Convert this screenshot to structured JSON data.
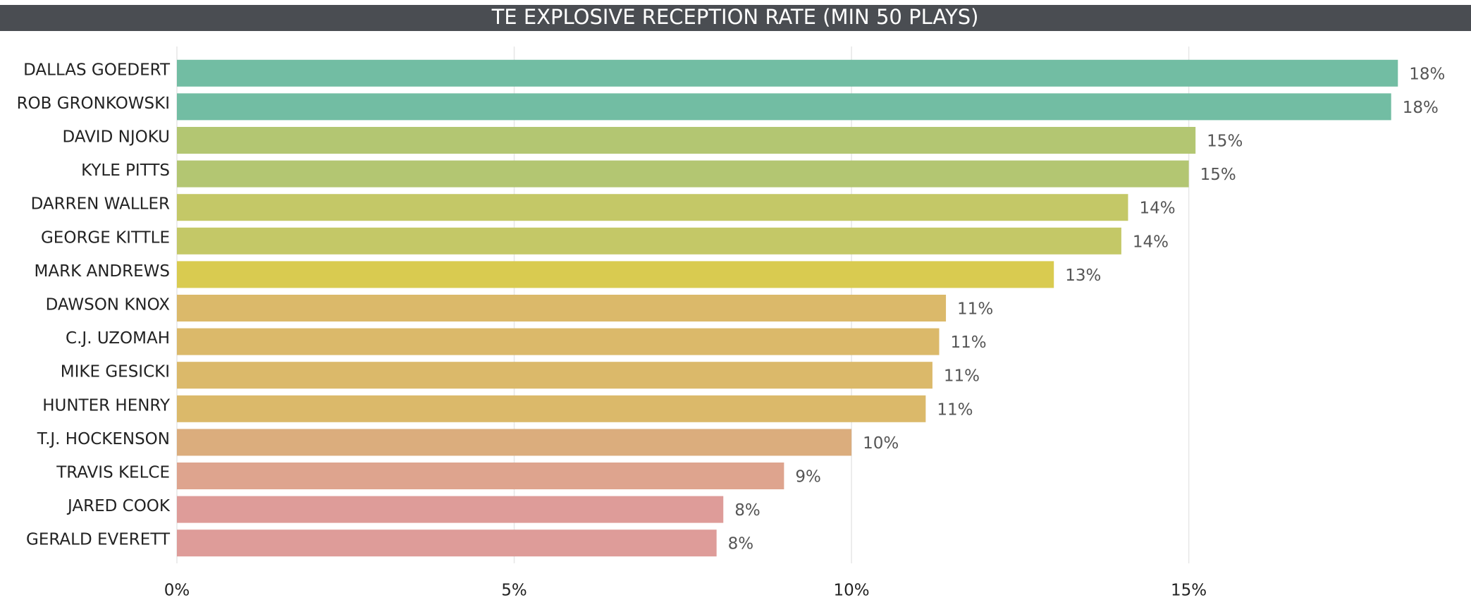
{
  "chart_data": {
    "type": "bar",
    "orientation": "horizontal",
    "title": "TE EXPLOSIVE RECEPTION RATE (MIN 50 PLAYS)",
    "categories": [
      "DALLAS GOEDERT",
      "ROB GRONKOWSKI",
      "DAVID NJOKU",
      "KYLE PITTS",
      "DARREN WALLER",
      "GEORGE KITTLE",
      "MARK ANDREWS",
      "DAWSON KNOX",
      "C.J. UZOMAH",
      "MIKE GESICKI",
      "HUNTER HENRY",
      "T.J. HOCKENSON",
      "TRAVIS KELCE",
      "JARED COOK",
      "GERALD EVERETT"
    ],
    "values": [
      18.1,
      18.0,
      15.1,
      15.0,
      14.1,
      14.0,
      13.0,
      11.4,
      11.3,
      11.2,
      11.1,
      10.0,
      9.0,
      8.1,
      8.0
    ],
    "value_labels": [
      "18%",
      "18%",
      "15%",
      "15%",
      "14%",
      "14%",
      "13%",
      "11%",
      "11%",
      "11%",
      "11%",
      "10%",
      "9%",
      "8%",
      "8%"
    ],
    "colors": [
      "#72bda3",
      "#72bda3",
      "#b3c672",
      "#b3c672",
      "#c4c867",
      "#c4c867",
      "#d9cb50",
      "#dbb96a",
      "#dbb96a",
      "#dbb96a",
      "#dbb96a",
      "#dbad7d",
      "#dea48e",
      "#de9c99",
      "#de9c99"
    ],
    "xlim": [
      0,
      19.1
    ],
    "xticks": [
      {
        "value": 0,
        "label": "0%"
      },
      {
        "value": 5,
        "label": "5%"
      },
      {
        "value": 10,
        "label": "10%"
      },
      {
        "value": 15,
        "label": "15%"
      }
    ],
    "grid": true
  }
}
